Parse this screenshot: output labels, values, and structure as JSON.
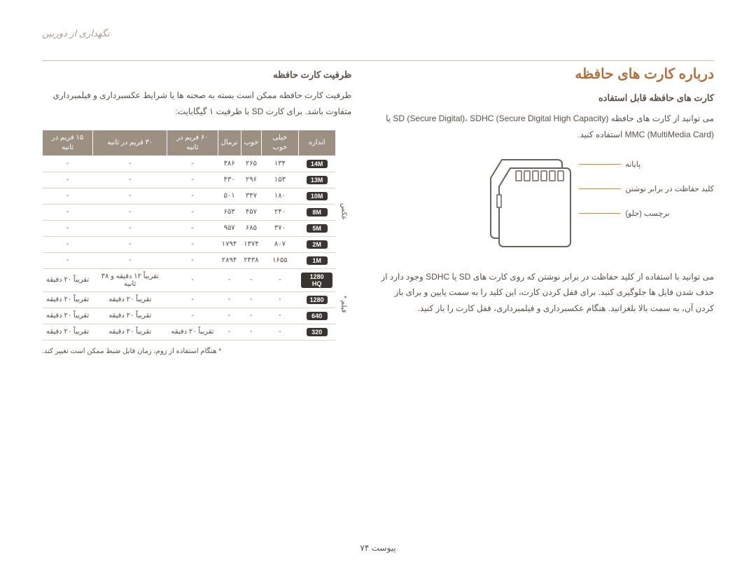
{
  "header": "نگهداری از دوربین",
  "right": {
    "title": "درباره کارت های حافظه",
    "sub": "کارت های حافظه قابل استفاده",
    "para1": "می توانید از کارت های حافظه SD (Secure Digital)، SDHC (Secure Digital High Capacity) یا MMC (MultiMedia Card) استفاده کنید.",
    "labels": {
      "terminal": "پایانه",
      "wp": "کلید حفاظت در برابر نوشتن",
      "label": "برچسب (جلو)"
    },
    "para2": "می توانید با استفاده از کلید حفاظت در برابر نوشتن که روی کارت های SD یا SDHC وجود دارد از حذف شدن فایل ها جلوگیری کنید. برای قفل کردن کارت، این کلید را به سمت پایین و برای باز کردن آن، به سمت بالا بلغزانید. هنگام عکسبرداری و فیلمبرداری، قفل کارت را باز کنید."
  },
  "left": {
    "sub": "ظرفیت کارت حافظه",
    "para": "ظرفیت کارت حافظه ممکن است بسته به صحنه ها یا شرایط عکسبرداری و فیلمبرداری متفاوت باشد. برای کارت SD با ظرفیت ۱ گیگابایت:",
    "headers": [
      "",
      "اندازه",
      "خیلی خوب",
      "خوب",
      "نرمال",
      "۶۰ فریم در ثانیه",
      "۳۰ فریم در ثانیه",
      "۱۵ فریم در ثانیه"
    ],
    "type_photo": "عکس",
    "type_video": "فیلم *",
    "photo_rows": [
      {
        "size": "14M",
        "vals": [
          "۱۳۴",
          "۲۶۵",
          "۳۸۶",
          "-",
          "-",
          "-"
        ]
      },
      {
        "size": "13M",
        "vals": [
          "۱۵۳",
          "۲۹۶",
          "۴۳۰",
          "-",
          "-",
          "-"
        ]
      },
      {
        "size": "10M",
        "vals": [
          "۱۸۰",
          "۳۴۷",
          "۵۰۱",
          "-",
          "-",
          "-"
        ]
      },
      {
        "size": "8M",
        "vals": [
          "۲۴۰",
          "۴۵۷",
          "۶۵۳",
          "-",
          "-",
          "-"
        ]
      },
      {
        "size": "5M",
        "vals": [
          "۳۷۰",
          "۶۸۵",
          "۹۵۷",
          "-",
          "-",
          "-"
        ]
      },
      {
        "size": "2M",
        "vals": [
          "۸۰۷",
          "۱۳۷۴",
          "۱۷۹۴",
          "-",
          "-",
          "-"
        ]
      },
      {
        "size": "1M",
        "vals": [
          "۱۶۵۵",
          "۲۴۳۸",
          "۲۸۹۴",
          "-",
          "-",
          "-"
        ]
      }
    ],
    "video_rows": [
      {
        "size": "1280 HQ",
        "vals": [
          "-",
          "-",
          "-",
          "-",
          "تقریباً ۱۲ دقیقه و ۳۸ ثانیه",
          "تقریباً ۲۰ دقیقه"
        ]
      },
      {
        "size": "1280",
        "vals": [
          "-",
          "-",
          "-",
          "-",
          "تقریباً ۲۰ دقیقه",
          "تقریباً ۲۰ دقیقه"
        ]
      },
      {
        "size": "640",
        "vals": [
          "-",
          "-",
          "-",
          "-",
          "تقریباً ۲۰ دقیقه",
          "تقریباً ۲۰ دقیقه"
        ]
      },
      {
        "size": "320",
        "vals": [
          "-",
          "-",
          "-",
          "تقریباً ۲۰ دقیقه",
          "تقریباً ۲۰ دقیقه",
          "تقریباً ۲۰ دقیقه"
        ]
      }
    ],
    "footnote": "* هنگام استفاده از زوم، زمان قابل ضبط ممکن است تغییر کند."
  },
  "footer": "پیوست  ۷۴"
}
